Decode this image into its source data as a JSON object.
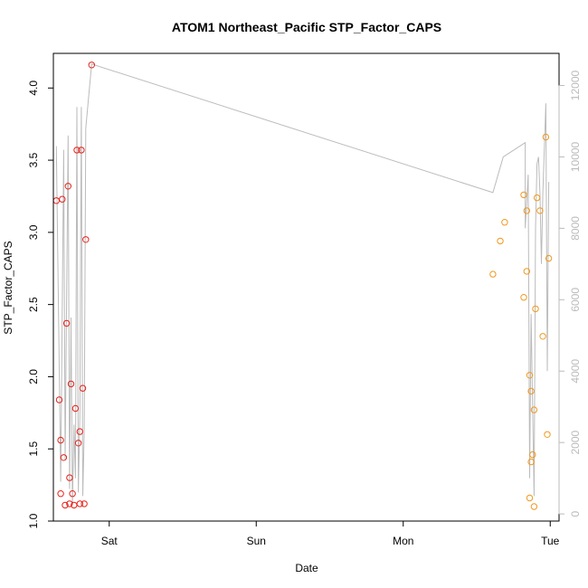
{
  "chart_data": {
    "type": "scatter",
    "title": "ATOM1 Northeast_Pacific STP_Factor_CAPS",
    "xlabel": "Date",
    "ylabel": "STP_Factor_CAPS",
    "x_axis": {
      "unit": "days",
      "range": [
        -0.38,
        3.06
      ],
      "ticks": [
        {
          "value": 0,
          "label": "Sat"
        },
        {
          "value": 1,
          "label": "Sun"
        },
        {
          "value": 2,
          "label": "Mon"
        },
        {
          "value": 3,
          "label": "Tue"
        }
      ]
    },
    "y_left": {
      "range": [
        1.0,
        4.24
      ],
      "ticks": [
        1.0,
        1.5,
        2.0,
        2.5,
        3.0,
        3.5,
        4.0
      ],
      "tick_labels": [
        "1.0",
        "1.5",
        "2.0",
        "2.5",
        "3.0",
        "3.5",
        "4.0"
      ]
    },
    "y_right": {
      "range": [
        -200,
        12900
      ],
      "ticks": [
        0,
        2000,
        4000,
        6000,
        8000,
        10000,
        12000
      ],
      "tick_labels": [
        "0",
        "2000",
        "4000",
        "6000",
        "8000",
        "10000",
        "12000"
      ],
      "color": "#bbbbbb"
    },
    "grid": false,
    "series": [
      {
        "marker": "open-circle",
        "color": "#e8201a",
        "points": [
          {
            "x": -0.36,
            "y": 3.22
          },
          {
            "x": -0.34,
            "y": 1.84
          },
          {
            "x": -0.33,
            "y": 1.19
          },
          {
            "x": -0.33,
            "y": 1.56
          },
          {
            "x": -0.32,
            "y": 3.23
          },
          {
            "x": -0.31,
            "y": 1.44
          },
          {
            "x": -0.3,
            "y": 1.11
          },
          {
            "x": -0.29,
            "y": 2.37
          },
          {
            "x": -0.28,
            "y": 3.32
          },
          {
            "x": -0.27,
            "y": 1.3
          },
          {
            "x": -0.27,
            "y": 1.12
          },
          {
            "x": -0.26,
            "y": 1.95
          },
          {
            "x": -0.25,
            "y": 1.19
          },
          {
            "x": -0.24,
            "y": 1.11
          },
          {
            "x": -0.23,
            "y": 1.78
          },
          {
            "x": -0.22,
            "y": 3.57
          },
          {
            "x": -0.21,
            "y": 1.54
          },
          {
            "x": -0.2,
            "y": 1.12
          },
          {
            "x": -0.2,
            "y": 1.62
          },
          {
            "x": -0.19,
            "y": 3.57
          },
          {
            "x": -0.18,
            "y": 1.92
          },
          {
            "x": -0.17,
            "y": 1.12
          },
          {
            "x": -0.16,
            "y": 2.95
          },
          {
            "x": -0.12,
            "y": 4.16
          }
        ]
      },
      {
        "marker": "open-circle",
        "color": "#f0981e",
        "points": [
          {
            "x": 2.61,
            "y": 2.71
          },
          {
            "x": 2.66,
            "y": 2.94
          },
          {
            "x": 2.69,
            "y": 3.07
          },
          {
            "x": 2.82,
            "y": 2.55
          },
          {
            "x": 2.82,
            "y": 3.26
          },
          {
            "x": 2.84,
            "y": 2.73
          },
          {
            "x": 2.84,
            "y": 3.15
          },
          {
            "x": 2.86,
            "y": 1.16
          },
          {
            "x": 2.86,
            "y": 2.01
          },
          {
            "x": 2.87,
            "y": 1.41
          },
          {
            "x": 2.87,
            "y": 1.9
          },
          {
            "x": 2.88,
            "y": 1.46
          },
          {
            "x": 2.89,
            "y": 1.1
          },
          {
            "x": 2.89,
            "y": 1.77
          },
          {
            "x": 2.9,
            "y": 2.47
          },
          {
            "x": 2.91,
            "y": 3.24
          },
          {
            "x": 2.93,
            "y": 3.15
          },
          {
            "x": 2.95,
            "y": 2.28
          },
          {
            "x": 2.97,
            "y": 3.66
          },
          {
            "x": 2.98,
            "y": 1.6
          },
          {
            "x": 2.99,
            "y": 2.82
          }
        ]
      }
    ],
    "line_series": {
      "axis": "right",
      "color": "#bbbbbb",
      "points": [
        {
          "x": -0.36,
          "y": 10300
        },
        {
          "x": -0.33,
          "y": 900
        },
        {
          "x": -0.31,
          "y": 10200
        },
        {
          "x": -0.3,
          "y": 1500
        },
        {
          "x": -0.28,
          "y": 10600
        },
        {
          "x": -0.27,
          "y": 700
        },
        {
          "x": -0.26,
          "y": 5500
        },
        {
          "x": -0.25,
          "y": 300
        },
        {
          "x": -0.24,
          "y": 2500
        },
        {
          "x": -0.23,
          "y": 1000
        },
        {
          "x": -0.22,
          "y": 11400
        },
        {
          "x": -0.21,
          "y": 600
        },
        {
          "x": -0.2,
          "y": 2800
        },
        {
          "x": -0.19,
          "y": 11400
        },
        {
          "x": -0.18,
          "y": 500
        },
        {
          "x": -0.17,
          "y": 2300
        },
        {
          "x": -0.16,
          "y": 10800
        },
        {
          "x": -0.12,
          "y": 12600
        },
        {
          "x": 2.61,
          "y": 9000
        },
        {
          "x": 2.68,
          "y": 10000
        },
        {
          "x": 2.83,
          "y": 10400
        },
        {
          "x": 2.83,
          "y": 8000
        },
        {
          "x": 2.85,
          "y": 9500
        },
        {
          "x": 2.86,
          "y": 1000
        },
        {
          "x": 2.87,
          "y": 5600
        },
        {
          "x": 2.88,
          "y": 3000
        },
        {
          "x": 2.89,
          "y": 500
        },
        {
          "x": 2.9,
          "y": 8000
        },
        {
          "x": 2.91,
          "y": 9800
        },
        {
          "x": 2.92,
          "y": 10000
        },
        {
          "x": 2.93,
          "y": 9000
        },
        {
          "x": 2.94,
          "y": 7000
        },
        {
          "x": 2.95,
          "y": 9000
        },
        {
          "x": 2.97,
          "y": 11500
        },
        {
          "x": 2.98,
          "y": 4000
        },
        {
          "x": 2.99,
          "y": 9300
        }
      ]
    }
  }
}
